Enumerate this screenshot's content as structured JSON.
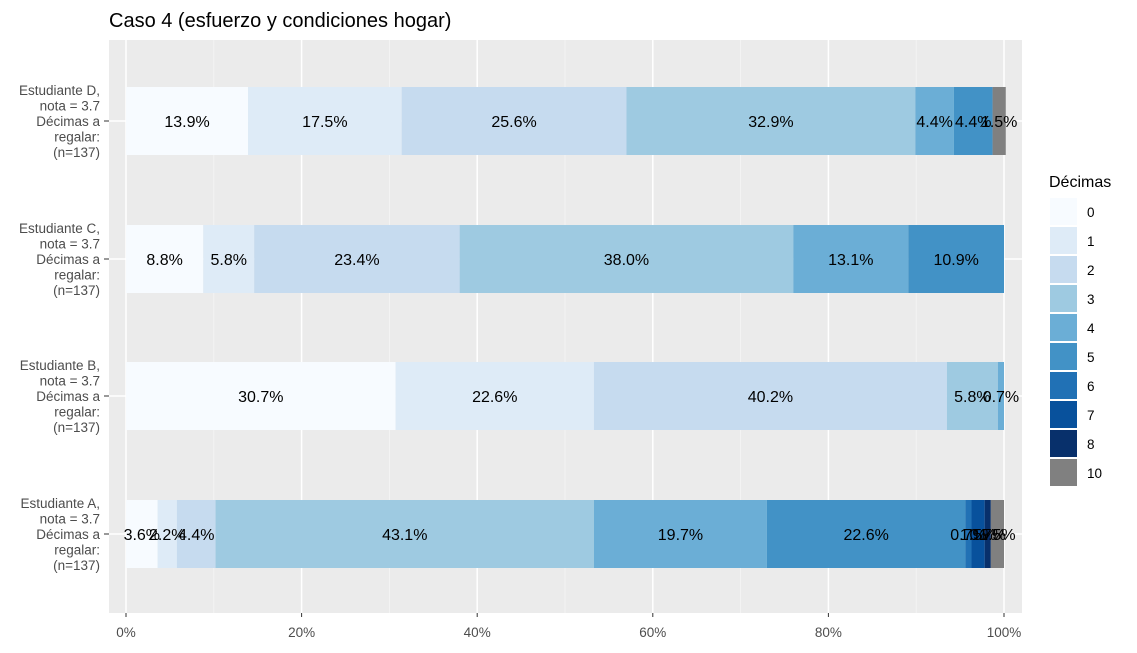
{
  "chart_data": {
    "type": "bar",
    "orientation": "horizontal",
    "stacked": "percent",
    "title": "Caso 4 (esfuerzo y condiciones hogar)",
    "xlabel": "",
    "ylabel": "",
    "xlim": [
      0,
      100
    ],
    "x_ticks": [
      "0%",
      "20%",
      "40%",
      "60%",
      "80%",
      "100%"
    ],
    "x_tick_values": [
      0,
      20,
      40,
      60,
      80,
      100
    ],
    "grid": true,
    "legend_position": "right",
    "legend": {
      "title": "Décimas",
      "entries": [
        "0",
        "1",
        "2",
        "3",
        "4",
        "5",
        "6",
        "7",
        "8",
        "10"
      ]
    },
    "colors": {
      "0": "#f7fbff",
      "1": "#deebf7",
      "2": "#c6dbef",
      "3": "#9ecae1",
      "4": "#6baed6",
      "5": "#4292c6",
      "6": "#2171b5",
      "7": "#08519c",
      "8": "#08306b",
      "10": "#808080"
    },
    "categories": [
      {
        "label": [
          "Estudiante D,",
          "nota = 3.7",
          "Décimas a",
          "regalar:",
          "(n=137)"
        ],
        "segments": [
          {
            "decima": "0",
            "value": 13.9,
            "label": "13.9%"
          },
          {
            "decima": "1",
            "value": 17.5,
            "label": "17.5%"
          },
          {
            "decima": "2",
            "value": 25.6,
            "label": "25.6%"
          },
          {
            "decima": "3",
            "value": 32.9,
            "label": "32.9%"
          },
          {
            "decima": "4",
            "value": 4.4,
            "label": "4.4%"
          },
          {
            "decima": "5",
            "value": 4.4,
            "label": "4.4%"
          },
          {
            "decima": "10",
            "value": 1.5,
            "label": "1.5%"
          }
        ]
      },
      {
        "label": [
          "Estudiante C,",
          "nota = 3.7",
          "Décimas a",
          "regalar:",
          "(n=137)"
        ],
        "segments": [
          {
            "decima": "0",
            "value": 8.8,
            "label": "8.8%"
          },
          {
            "decima": "1",
            "value": 5.8,
            "label": "5.8%"
          },
          {
            "decima": "2",
            "value": 23.4,
            "label": "23.4%"
          },
          {
            "decima": "3",
            "value": 38.0,
            "label": "38.0%"
          },
          {
            "decima": "4",
            "value": 13.1,
            "label": "13.1%"
          },
          {
            "decima": "5",
            "value": 10.9,
            "label": "10.9%"
          }
        ]
      },
      {
        "label": [
          "Estudiante B,",
          "nota = 3.7",
          "Décimas a",
          "regalar:",
          "(n=137)"
        ],
        "segments": [
          {
            "decima": "0",
            "value": 30.7,
            "label": "30.7%"
          },
          {
            "decima": "1",
            "value": 22.6,
            "label": "22.6%"
          },
          {
            "decima": "2",
            "value": 40.2,
            "label": "40.2%"
          },
          {
            "decima": "3",
            "value": 5.8,
            "label": "5.8%"
          },
          {
            "decima": "4",
            "value": 0.7,
            "label": "0.7%"
          }
        ]
      },
      {
        "label": [
          "Estudiante A,",
          "nota = 3.7",
          "Décimas a",
          "regalar:",
          "(n=137)"
        ],
        "segments": [
          {
            "decima": "0",
            "value": 3.6,
            "label": "3.6%"
          },
          {
            "decima": "1",
            "value": 2.2,
            "label": "2.2%"
          },
          {
            "decima": "2",
            "value": 4.4,
            "label": "4.4%"
          },
          {
            "decima": "3",
            "value": 43.1,
            "label": "43.1%"
          },
          {
            "decima": "4",
            "value": 19.7,
            "label": "19.7%"
          },
          {
            "decima": "5",
            "value": 22.6,
            "label": "22.6%"
          },
          {
            "decima": "6",
            "value": 0.7,
            "label": "0.7%"
          },
          {
            "decima": "7",
            "value": 1.5,
            "label": "1.5%"
          },
          {
            "decima": "8",
            "value": 0.7,
            "label": "0.7%"
          },
          {
            "decima": "10",
            "value": 1.5,
            "label": "1.5%"
          }
        ]
      }
    ]
  }
}
